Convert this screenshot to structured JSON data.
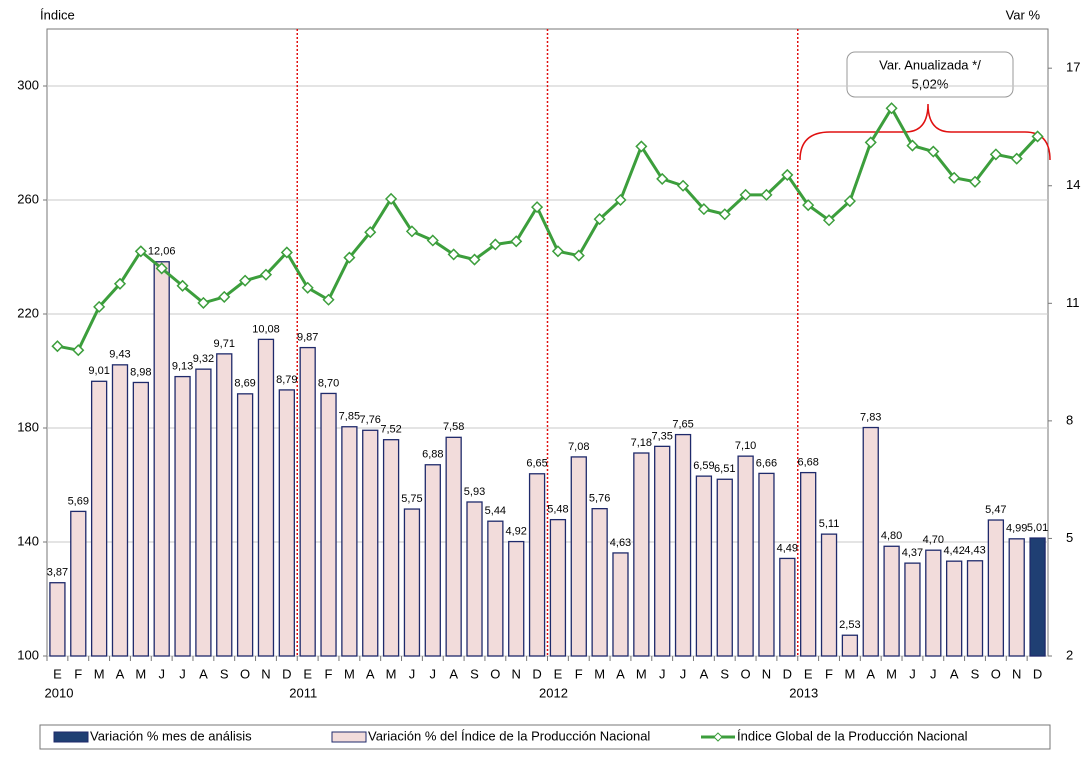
{
  "chart_data": {
    "type": "bar-line",
    "ylabel": "Índice",
    "y2label": "Var %",
    "categories": [
      "E",
      "F",
      "M",
      "A",
      "M",
      "J",
      "J",
      "A",
      "S",
      "O",
      "N",
      "D",
      "E",
      "F",
      "M",
      "A",
      "M",
      "J",
      "J",
      "A",
      "S",
      "O",
      "N",
      "D",
      "E",
      "F",
      "M",
      "A",
      "M",
      "J",
      "J",
      "A",
      "S",
      "O",
      "N",
      "D",
      "E",
      "F",
      "M",
      "A",
      "M",
      "J",
      "J",
      "A",
      "S",
      "O",
      "N",
      "D"
    ],
    "years": [
      "2010",
      "2011",
      "2012",
      "2013"
    ],
    "ylim": [
      100,
      320
    ],
    "yticks": [
      100,
      140,
      180,
      220,
      260,
      300
    ],
    "y2lim": [
      2,
      18
    ],
    "y2ticks": [
      2,
      5,
      8,
      11,
      14,
      17
    ],
    "grid": true,
    "annotation": [
      "Var. Anualizada */",
      "5,02%"
    ],
    "series": [
      {
        "name": "Variación % mes de análisis",
        "type": "bar",
        "axis": "y2",
        "color": "#1f3f73",
        "values": [
          null,
          null,
          null,
          null,
          null,
          null,
          null,
          null,
          null,
          null,
          null,
          null,
          null,
          null,
          null,
          null,
          null,
          null,
          null,
          null,
          null,
          null,
          null,
          null,
          null,
          null,
          null,
          null,
          null,
          null,
          null,
          null,
          null,
          null,
          null,
          null,
          null,
          null,
          null,
          null,
          null,
          null,
          null,
          null,
          null,
          null,
          null,
          5.01
        ],
        "value_labels": [
          null,
          null,
          null,
          null,
          null,
          null,
          null,
          null,
          null,
          null,
          null,
          null,
          null,
          null,
          null,
          null,
          null,
          null,
          null,
          null,
          null,
          null,
          null,
          null,
          null,
          null,
          null,
          null,
          null,
          null,
          null,
          null,
          null,
          null,
          null,
          null,
          null,
          null,
          null,
          null,
          null,
          null,
          null,
          null,
          null,
          null,
          null,
          "5,01"
        ]
      },
      {
        "name": "Variación % del Índice de la Producción Nacional",
        "type": "bar",
        "axis": "y2",
        "color": "#f2dcdb",
        "values": [
          3.87,
          5.69,
          9.01,
          9.43,
          8.98,
          12.06,
          9.13,
          9.32,
          9.71,
          8.69,
          10.08,
          8.79,
          9.87,
          8.7,
          7.85,
          7.76,
          7.52,
          5.75,
          6.88,
          7.58,
          5.93,
          5.44,
          4.92,
          6.65,
          5.48,
          7.08,
          5.76,
          4.63,
          7.18,
          7.35,
          7.65,
          6.59,
          6.51,
          7.1,
          6.66,
          4.49,
          6.68,
          5.11,
          2.53,
          7.83,
          4.8,
          4.37,
          4.7,
          4.42,
          4.43,
          5.47,
          4.99,
          null
        ],
        "value_labels": [
          "3,87",
          "5,69",
          "9,01",
          "9,43",
          "8,98",
          "12,06",
          "9,13",
          "9,32",
          "9,71",
          "8,69",
          "10,08",
          "8,79",
          "9,87",
          "8,70",
          "7,85",
          "7,76",
          "7,52",
          "5,75",
          "6,88",
          "7,58",
          "5,93",
          "5,44",
          "4,92",
          "6,65",
          "5,48",
          "7,08",
          "5,76",
          "4,63",
          "7,18",
          "7,35",
          "7,65",
          "6,59",
          "6,51",
          "7,10",
          "6,66",
          "4,49",
          "6,68",
          "5,11",
          "2,53",
          "7,83",
          "4,80",
          "4,37",
          "4,70",
          "4,42",
          "4,43",
          "5,47",
          "4,99",
          null
        ]
      },
      {
        "name": "Índice Global de la Producción Nacional",
        "type": "line",
        "color": "#3c9e3c",
        "values": [
          208.7,
          207.3,
          222.5,
          230.6,
          242,
          236,
          229.9,
          223.9,
          226,
          231.7,
          233.8,
          241.6,
          229.2,
          225,
          239.8,
          248.7,
          260.4,
          249,
          245.8,
          240.9,
          239.1,
          244.4,
          245.5,
          257.5,
          242,
          240.5,
          253.3,
          260,
          278.8,
          267.4,
          265,
          256.8,
          255,
          261.8,
          261.8,
          268.8,
          258.2,
          252.9,
          259.6,
          280.2,
          292.2,
          279.1,
          277,
          267.8,
          266.4,
          276,
          274.5,
          282.3
        ]
      }
    ]
  }
}
